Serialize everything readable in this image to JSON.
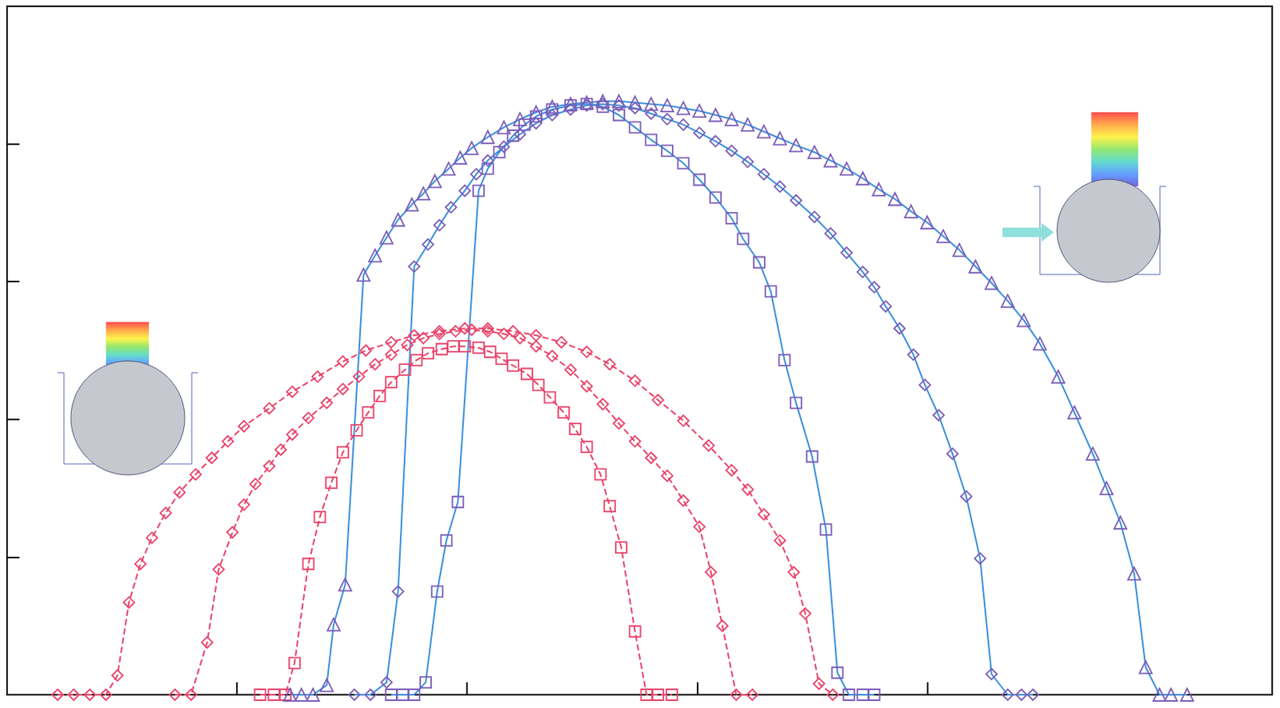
{
  "chart_data": {
    "type": "line",
    "xlim": [
      0,
      5.5
    ],
    "xticks": [
      1,
      2,
      3,
      4
    ],
    "ylim": [
      0,
      5
    ],
    "yticks": [
      1,
      2,
      3,
      4
    ],
    "tick_labels": false,
    "grid": false,
    "series": [
      {
        "color": "#e8436a",
        "marker": "diamond",
        "line_style": "dashed",
        "x": [
          0.22,
          0.29,
          0.36,
          0.43,
          0.48,
          0.53,
          0.58,
          0.63,
          0.69,
          0.75,
          0.82,
          0.89,
          0.96,
          1.03,
          1.14,
          1.24,
          1.35,
          1.46,
          1.56,
          1.67,
          1.77,
          1.88,
          1.99,
          2.09,
          2.2,
          2.3,
          2.41,
          2.52,
          2.62,
          2.73,
          2.83,
          2.94,
          3.05,
          3.15,
          3.22,
          3.29,
          3.36,
          3.42,
          3.47,
          3.53,
          3.59
        ],
        "values": [
          0,
          0,
          0,
          0,
          0.14,
          0.67,
          0.95,
          1.14,
          1.32,
          1.47,
          1.6,
          1.72,
          1.84,
          1.95,
          2.08,
          2.2,
          2.31,
          2.42,
          2.5,
          2.56,
          2.61,
          2.64,
          2.66,
          2.66,
          2.64,
          2.61,
          2.56,
          2.49,
          2.4,
          2.28,
          2.14,
          1.99,
          1.81,
          1.63,
          1.49,
          1.31,
          1.12,
          0.89,
          0.59,
          0.08,
          0
        ]
      },
      {
        "color": "#e8436a",
        "marker": "diamond",
        "line_style": "dashed",
        "x": [
          0.73,
          0.8,
          0.87,
          0.92,
          0.98,
          1.03,
          1.08,
          1.14,
          1.19,
          1.24,
          1.31,
          1.39,
          1.46,
          1.53,
          1.6,
          1.67,
          1.74,
          1.81,
          1.88,
          1.95,
          2.02,
          2.09,
          2.16,
          2.23,
          2.3,
          2.37,
          2.45,
          2.52,
          2.59,
          2.66,
          2.73,
          2.8,
          2.87,
          2.94,
          3.01,
          3.06,
          3.11,
          3.17,
          3.24
        ],
        "values": [
          0,
          0,
          0.38,
          0.91,
          1.18,
          1.38,
          1.53,
          1.66,
          1.78,
          1.89,
          2.01,
          2.12,
          2.22,
          2.31,
          2.4,
          2.47,
          2.54,
          2.59,
          2.62,
          2.64,
          2.65,
          2.64,
          2.62,
          2.59,
          2.53,
          2.46,
          2.36,
          2.24,
          2.11,
          1.97,
          1.84,
          1.72,
          1.59,
          1.41,
          1.22,
          0.89,
          0.5,
          0,
          0
        ]
      },
      {
        "color": "#e8436a",
        "marker": "square",
        "line_style": "dashed",
        "x": [
          1.1,
          1.16,
          1.21,
          1.25,
          1.31,
          1.36,
          1.41,
          1.46,
          1.52,
          1.57,
          1.62,
          1.67,
          1.73,
          1.78,
          1.83,
          1.89,
          1.94,
          1.99,
          2.05,
          2.1,
          2.15,
          2.2,
          2.26,
          2.31,
          2.36,
          2.42,
          2.47,
          2.52,
          2.58,
          2.62,
          2.67,
          2.73,
          2.78,
          2.83,
          2.89
        ],
        "values": [
          0,
          0,
          0,
          0.23,
          0.95,
          1.29,
          1.54,
          1.76,
          1.92,
          2.05,
          2.17,
          2.27,
          2.36,
          2.43,
          2.48,
          2.51,
          2.53,
          2.53,
          2.52,
          2.49,
          2.44,
          2.39,
          2.33,
          2.25,
          2.16,
          2.05,
          1.93,
          1.8,
          1.6,
          1.37,
          1.07,
          0.46,
          0,
          0,
          0
        ]
      },
      {
        "color": "#7b5cb8",
        "marker": "triangle",
        "line_style": "solid",
        "x": [
          1.23,
          1.28,
          1.33,
          1.39,
          1.42,
          1.47,
          1.55,
          1.6,
          1.65,
          1.7,
          1.76,
          1.81,
          1.86,
          1.92,
          1.97,
          2.02,
          2.09,
          2.16,
          2.23,
          2.3,
          2.37,
          2.45,
          2.52,
          2.59,
          2.66,
          2.73,
          2.8,
          2.87,
          2.94,
          3.01,
          3.08,
          3.15,
          3.22,
          3.29,
          3.36,
          3.43,
          3.51,
          3.58,
          3.65,
          3.72,
          3.79,
          3.86,
          3.93,
          4.0,
          4.07,
          4.14,
          4.21,
          4.28,
          4.35,
          4.42,
          4.49,
          4.57,
          4.64,
          4.72,
          4.78,
          4.84,
          4.9,
          4.95,
          5.01,
          5.06,
          5.13
        ],
        "values": [
          0,
          0,
          0,
          0.07,
          0.51,
          0.8,
          3.05,
          3.19,
          3.32,
          3.45,
          3.56,
          3.64,
          3.73,
          3.82,
          3.9,
          3.97,
          4.05,
          4.12,
          4.18,
          4.23,
          4.27,
          4.29,
          4.3,
          4.31,
          4.31,
          4.3,
          4.29,
          4.28,
          4.26,
          4.24,
          4.21,
          4.18,
          4.14,
          4.09,
          4.04,
          3.99,
          3.94,
          3.88,
          3.82,
          3.75,
          3.67,
          3.6,
          3.51,
          3.43,
          3.33,
          3.23,
          3.11,
          2.99,
          2.86,
          2.72,
          2.55,
          2.31,
          2.05,
          1.75,
          1.5,
          1.25,
          0.88,
          0.2,
          0,
          0,
          0
        ]
      },
      {
        "color": "#7b5cb8",
        "marker": "diamond",
        "line_style": "solid",
        "x": [
          1.51,
          1.58,
          1.65,
          1.7,
          1.77,
          1.83,
          1.88,
          1.93,
          1.99,
          2.04,
          2.09,
          2.16,
          2.23,
          2.3,
          2.37,
          2.45,
          2.52,
          2.59,
          2.66,
          2.73,
          2.8,
          2.87,
          2.94,
          3.01,
          3.08,
          3.15,
          3.22,
          3.29,
          3.36,
          3.43,
          3.51,
          3.58,
          3.65,
          3.72,
          3.77,
          3.82,
          3.88,
          3.94,
          3.99,
          4.05,
          4.11,
          4.17,
          4.23,
          4.28,
          4.35,
          4.41,
          4.46
        ],
        "values": [
          0,
          0,
          0.09,
          0.75,
          3.11,
          3.27,
          3.41,
          3.54,
          3.66,
          3.78,
          3.88,
          3.98,
          4.07,
          4.15,
          4.21,
          4.25,
          4.28,
          4.29,
          4.28,
          4.26,
          4.22,
          4.18,
          4.14,
          4.08,
          4.02,
          3.95,
          3.87,
          3.78,
          3.69,
          3.59,
          3.47,
          3.35,
          3.21,
          3.07,
          2.96,
          2.82,
          2.66,
          2.47,
          2.25,
          2.03,
          1.75,
          1.44,
          0.99,
          0.15,
          0,
          0,
          0
        ]
      },
      {
        "color": "#7b5cb8",
        "marker": "square",
        "line_style": "solid",
        "x": [
          1.67,
          1.72,
          1.77,
          1.82,
          1.87,
          1.91,
          1.96,
          2.05,
          2.09,
          2.14,
          2.2,
          2.25,
          2.3,
          2.37,
          2.45,
          2.52,
          2.59,
          2.66,
          2.73,
          2.8,
          2.87,
          2.94,
          3.01,
          3.08,
          3.15,
          3.2,
          3.27,
          3.32,
          3.38,
          3.43,
          3.5,
          3.56,
          3.61,
          3.66,
          3.72,
          3.77
        ],
        "values": [
          0,
          0,
          0,
          0.09,
          0.75,
          1.12,
          1.4,
          3.66,
          3.82,
          3.94,
          4.06,
          4.14,
          4.2,
          4.25,
          4.28,
          4.29,
          4.27,
          4.21,
          4.12,
          4.03,
          3.95,
          3.86,
          3.74,
          3.61,
          3.46,
          3.31,
          3.14,
          2.93,
          2.43,
          2.12,
          1.73,
          1.2,
          0.16,
          0,
          0,
          0
        ]
      }
    ]
  }
}
